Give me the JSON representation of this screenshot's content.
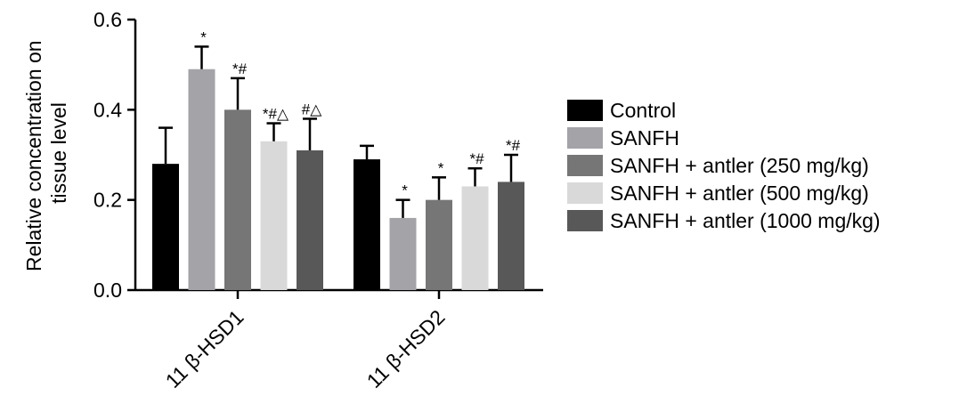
{
  "chart_data": {
    "type": "bar",
    "categories": [
      "11 β-HSD1",
      "11 β-HSD2"
    ],
    "series": [
      {
        "name": "Control",
        "color": "#000000",
        "values": [
          0.28,
          0.29
        ],
        "errors": [
          0.08,
          0.03
        ],
        "annotations": [
          "",
          ""
        ]
      },
      {
        "name": "SANFH",
        "color": "#a3a3a8",
        "values": [
          0.49,
          0.16
        ],
        "errors": [
          0.05,
          0.04
        ],
        "annotations": [
          "*",
          "*"
        ]
      },
      {
        "name": "SANFH + antler (250 mg/kg)",
        "color": "#767676",
        "values": [
          0.4,
          0.2
        ],
        "errors": [
          0.07,
          0.05
        ],
        "annotations": [
          "*#",
          "*"
        ]
      },
      {
        "name": "SANFH + antler (500 mg/kg)",
        "color": "#d9d9d9",
        "values": [
          0.33,
          0.23
        ],
        "errors": [
          0.04,
          0.04
        ],
        "annotations": [
          "*#△",
          "*#"
        ]
      },
      {
        "name": "SANFH + antler (1000 mg/kg)",
        "color": "#585858",
        "values": [
          0.31,
          0.24
        ],
        "errors": [
          0.07,
          0.06
        ],
        "annotations": [
          "#△",
          "*#"
        ]
      }
    ],
    "ylabel_line1": "Relative concentration on",
    "ylabel_line2": "tissue level",
    "ylim": [
      0.0,
      0.6
    ],
    "yticks": [
      "0.0",
      "0.2",
      "0.4",
      "0.6"
    ],
    "yticks_values": [
      0.0,
      0.2,
      0.4,
      0.6
    ],
    "legend_position": "right",
    "grid": false
  }
}
